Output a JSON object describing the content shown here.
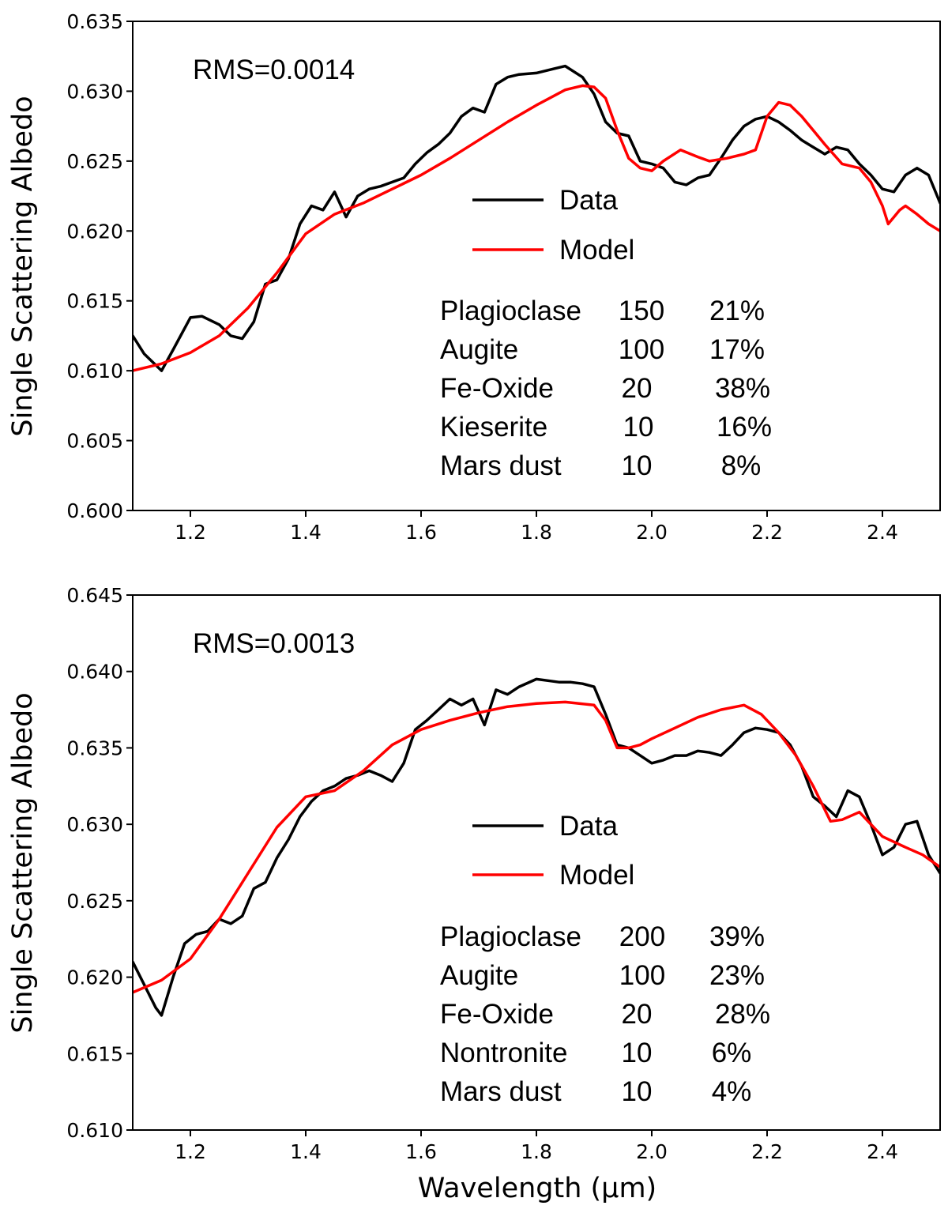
{
  "chart_data": [
    {
      "type": "line",
      "panel": "top",
      "ylabel": "Single Scattering Albedo",
      "xlabel": "",
      "xlim": [
        1.1,
        2.5
      ],
      "ylim": [
        0.6,
        0.635
      ],
      "xticks": [
        "1.2",
        "1.4",
        "1.6",
        "1.8",
        "2.0",
        "2.2",
        "2.4"
      ],
      "yticks": [
        "0.600",
        "0.605",
        "0.610",
        "0.615",
        "0.620",
        "0.625",
        "0.630",
        "0.635"
      ],
      "rms_label": "RMS=0.0014",
      "legend": {
        "position": "center-right",
        "entries": [
          {
            "name": "Data",
            "color": "#000000"
          },
          {
            "name": "Model",
            "color": "#ff0000"
          }
        ]
      },
      "components": [
        {
          "name": "Plagioclase",
          "size": "150",
          "fraction": "21%"
        },
        {
          "name": "Augite",
          "size": "100",
          "fraction": "17%"
        },
        {
          "name": "Fe-Oxide",
          "size": "20",
          "fraction": "38%"
        },
        {
          "name": "Kieserite",
          "size": "10",
          "fraction": "16%"
        },
        {
          "name": "Mars dust",
          "size": "10",
          "fraction": "8%"
        }
      ],
      "series": [
        {
          "name": "Data",
          "color": "#000000",
          "x": [
            1.1,
            1.12,
            1.15,
            1.17,
            1.2,
            1.22,
            1.25,
            1.27,
            1.29,
            1.31,
            1.33,
            1.35,
            1.37,
            1.39,
            1.41,
            1.43,
            1.45,
            1.47,
            1.49,
            1.51,
            1.53,
            1.55,
            1.57,
            1.59,
            1.61,
            1.63,
            1.65,
            1.67,
            1.69,
            1.71,
            1.73,
            1.75,
            1.77,
            1.8,
            1.83,
            1.85,
            1.88,
            1.9,
            1.92,
            1.94,
            1.96,
            1.98,
            2.0,
            2.02,
            2.04,
            2.06,
            2.08,
            2.1,
            2.12,
            2.14,
            2.16,
            2.18,
            2.2,
            2.22,
            2.24,
            2.26,
            2.28,
            2.3,
            2.32,
            2.34,
            2.36,
            2.38,
            2.4,
            2.42,
            2.44,
            2.46,
            2.48,
            2.5
          ],
          "y": [
            0.6125,
            0.6112,
            0.61,
            0.6115,
            0.6138,
            0.6139,
            0.6133,
            0.6125,
            0.6123,
            0.6135,
            0.6162,
            0.6165,
            0.618,
            0.6205,
            0.6218,
            0.6215,
            0.6228,
            0.621,
            0.6225,
            0.623,
            0.6232,
            0.6235,
            0.6238,
            0.6248,
            0.6256,
            0.6262,
            0.627,
            0.6282,
            0.6288,
            0.6285,
            0.6305,
            0.631,
            0.6312,
            0.6313,
            0.6316,
            0.6318,
            0.631,
            0.6298,
            0.6278,
            0.627,
            0.6268,
            0.625,
            0.6248,
            0.6245,
            0.6235,
            0.6233,
            0.6238,
            0.624,
            0.6252,
            0.6265,
            0.6275,
            0.628,
            0.6282,
            0.6278,
            0.6272,
            0.6265,
            0.626,
            0.6255,
            0.626,
            0.6258,
            0.6248,
            0.624,
            0.623,
            0.6228,
            0.624,
            0.6245,
            0.624,
            0.622
          ]
        },
        {
          "name": "Model",
          "color": "#ff0000",
          "x": [
            1.1,
            1.15,
            1.2,
            1.25,
            1.3,
            1.35,
            1.4,
            1.45,
            1.5,
            1.55,
            1.6,
            1.65,
            1.7,
            1.75,
            1.8,
            1.85,
            1.88,
            1.9,
            1.92,
            1.94,
            1.96,
            1.98,
            2.0,
            2.02,
            2.05,
            2.08,
            2.1,
            2.13,
            2.16,
            2.18,
            2.2,
            2.22,
            2.24,
            2.26,
            2.28,
            2.3,
            2.33,
            2.36,
            2.38,
            2.4,
            2.41,
            2.42,
            2.43,
            2.44,
            2.46,
            2.48,
            2.5
          ],
          "y": [
            0.61,
            0.6105,
            0.6113,
            0.6125,
            0.6145,
            0.617,
            0.6198,
            0.6212,
            0.622,
            0.623,
            0.624,
            0.6252,
            0.6265,
            0.6278,
            0.629,
            0.6301,
            0.6304,
            0.6303,
            0.6295,
            0.6272,
            0.6252,
            0.6245,
            0.6243,
            0.625,
            0.6258,
            0.6253,
            0.625,
            0.6252,
            0.6255,
            0.6258,
            0.6282,
            0.6292,
            0.629,
            0.6282,
            0.6272,
            0.6262,
            0.6248,
            0.6245,
            0.6235,
            0.6218,
            0.6205,
            0.621,
            0.6215,
            0.6218,
            0.6212,
            0.6205,
            0.62
          ]
        }
      ]
    },
    {
      "type": "line",
      "panel": "bottom",
      "ylabel": "Single Scattering Albedo",
      "xlabel": "Wavelength  (μm)",
      "xlim": [
        1.1,
        2.5
      ],
      "ylim": [
        0.61,
        0.645
      ],
      "xticks": [
        "1.2",
        "1.4",
        "1.6",
        "1.8",
        "2.0",
        "2.2",
        "2.4"
      ],
      "yticks": [
        "0.610",
        "0.615",
        "0.620",
        "0.625",
        "0.630",
        "0.635",
        "0.640",
        "0.645"
      ],
      "rms_label": "RMS=0.0013",
      "legend": {
        "position": "center-right",
        "entries": [
          {
            "name": "Data",
            "color": "#000000"
          },
          {
            "name": "Model",
            "color": "#ff0000"
          }
        ]
      },
      "components": [
        {
          "name": "Plagioclase",
          "size": "200",
          "fraction": "39%"
        },
        {
          "name": "Augite",
          "size": "100",
          "fraction": "23%"
        },
        {
          "name": "Fe-Oxide",
          "size": "20",
          "fraction": "28%"
        },
        {
          "name": "Nontronite",
          "size": "10",
          "fraction": "6%"
        },
        {
          "name": "Mars dust",
          "size": "10",
          "fraction": "4%"
        }
      ],
      "series": [
        {
          "name": "Data",
          "color": "#000000",
          "x": [
            1.1,
            1.12,
            1.14,
            1.15,
            1.17,
            1.19,
            1.21,
            1.23,
            1.25,
            1.27,
            1.29,
            1.31,
            1.33,
            1.35,
            1.37,
            1.39,
            1.41,
            1.43,
            1.45,
            1.47,
            1.49,
            1.51,
            1.53,
            1.55,
            1.57,
            1.59,
            1.61,
            1.63,
            1.65,
            1.67,
            1.69,
            1.71,
            1.73,
            1.75,
            1.77,
            1.8,
            1.82,
            1.84,
            1.86,
            1.88,
            1.9,
            1.92,
            1.94,
            1.96,
            1.98,
            2.0,
            2.02,
            2.04,
            2.06,
            2.08,
            2.1,
            2.12,
            2.14,
            2.16,
            2.18,
            2.2,
            2.22,
            2.24,
            2.26,
            2.28,
            2.3,
            2.32,
            2.34,
            2.36,
            2.38,
            2.4,
            2.42,
            2.44,
            2.46,
            2.48,
            2.5
          ],
          "y": [
            0.621,
            0.6195,
            0.618,
            0.6175,
            0.62,
            0.6222,
            0.6228,
            0.623,
            0.6238,
            0.6235,
            0.624,
            0.6258,
            0.6262,
            0.6278,
            0.629,
            0.6305,
            0.6315,
            0.6322,
            0.6325,
            0.633,
            0.6332,
            0.6335,
            0.6332,
            0.6328,
            0.634,
            0.6362,
            0.6368,
            0.6375,
            0.6382,
            0.6378,
            0.6382,
            0.6365,
            0.6388,
            0.6385,
            0.639,
            0.6395,
            0.6394,
            0.6393,
            0.6393,
            0.6392,
            0.639,
            0.6372,
            0.6352,
            0.635,
            0.6345,
            0.634,
            0.6342,
            0.6345,
            0.6345,
            0.6348,
            0.6347,
            0.6345,
            0.6352,
            0.636,
            0.6363,
            0.6362,
            0.636,
            0.6352,
            0.6338,
            0.6318,
            0.6312,
            0.6305,
            0.6322,
            0.6318,
            0.63,
            0.628,
            0.6285,
            0.63,
            0.6302,
            0.628,
            0.6268
          ]
        },
        {
          "name": "Model",
          "color": "#ff0000",
          "x": [
            1.1,
            1.15,
            1.2,
            1.25,
            1.3,
            1.35,
            1.4,
            1.45,
            1.5,
            1.55,
            1.6,
            1.65,
            1.7,
            1.75,
            1.8,
            1.85,
            1.9,
            1.92,
            1.94,
            1.96,
            1.98,
            2.0,
            2.04,
            2.08,
            2.12,
            2.16,
            2.19,
            2.22,
            2.25,
            2.28,
            2.31,
            2.33,
            2.36,
            2.4,
            2.44,
            2.47,
            2.5
          ],
          "y": [
            0.619,
            0.6198,
            0.6212,
            0.6238,
            0.6268,
            0.6298,
            0.6318,
            0.6322,
            0.6335,
            0.6352,
            0.6362,
            0.6368,
            0.6373,
            0.6377,
            0.6379,
            0.638,
            0.6378,
            0.6368,
            0.635,
            0.635,
            0.6352,
            0.6356,
            0.6363,
            0.637,
            0.6375,
            0.6378,
            0.6372,
            0.636,
            0.6345,
            0.6325,
            0.6302,
            0.6303,
            0.6308,
            0.6292,
            0.6285,
            0.628,
            0.6272
          ]
        }
      ]
    }
  ]
}
